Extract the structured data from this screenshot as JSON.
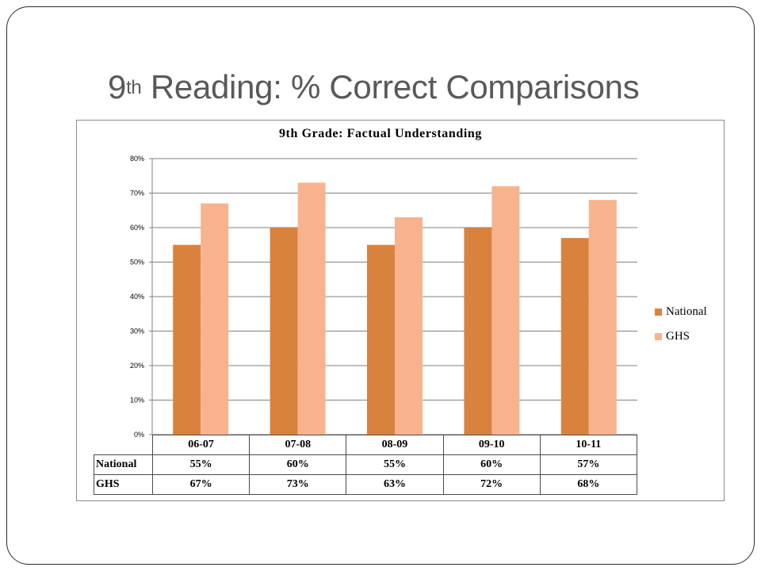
{
  "slide": {
    "title_main": "9",
    "title_sup": "th",
    "title_rest": " Reading:  % Correct Comparisons"
  },
  "chart_data": {
    "type": "bar",
    "title": "9th Grade: Factual Understanding",
    "categories": [
      "06-07",
      "07-08",
      "08-09",
      "09-10",
      "10-11"
    ],
    "series": [
      {
        "name": "National",
        "values": [
          55,
          60,
          55,
          60,
          57
        ],
        "color": "#d9823e",
        "labels": [
          "55%",
          "60%",
          "55%",
          "60%",
          "57%"
        ]
      },
      {
        "name": "GHS",
        "values": [
          67,
          73,
          63,
          72,
          68
        ],
        "color": "#f6b38e",
        "labels": [
          "67%",
          "73%",
          "63%",
          "72%",
          "68%"
        ]
      }
    ],
    "ylim": [
      0,
      80
    ],
    "yticks": [
      0,
      10,
      20,
      30,
      40,
      50,
      60,
      70,
      80
    ],
    "ytick_labels": [
      "0%",
      "10%",
      "20%",
      "30%",
      "40%",
      "50%",
      "60%",
      "70%",
      "80%"
    ],
    "grid": true,
    "legend": "right",
    "gridline_color": "#808080"
  }
}
